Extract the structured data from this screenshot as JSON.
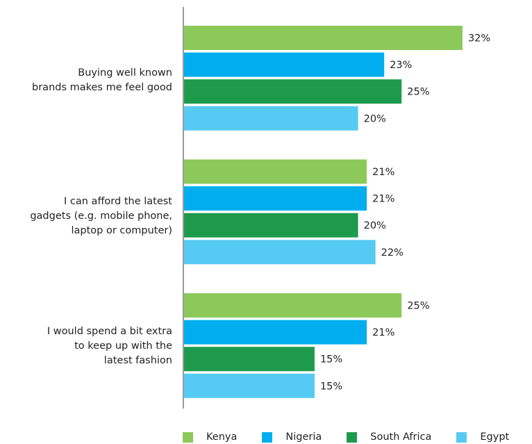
{
  "chart_data": {
    "type": "bar",
    "orientation": "horizontal",
    "categories": [
      "Buying well known\nbrands makes me feel good",
      "I can afford the latest \ngadgets (e.g. mobile phone,\nlaptop or computer)",
      "I would spend a bit extra\nto keep up with the\nlatest fashion"
    ],
    "series": [
      {
        "name": "Kenya",
        "color": "#8dc95a",
        "values": [
          32,
          21,
          25
        ],
        "labels": [
          "32%",
          "21%",
          "25%"
        ]
      },
      {
        "name": "Nigeria",
        "color": "#00aeef",
        "values": [
          23,
          21,
          21
        ],
        "labels": [
          "23%",
          "21%",
          "21%"
        ]
      },
      {
        "name": "South Africa",
        "color": "#1e9a4d",
        "values": [
          25,
          20,
          15
        ],
        "labels": [
          "25%",
          "20%",
          "15%"
        ]
      },
      {
        "name": "Egypt",
        "color": "#55cbf3",
        "values": [
          20,
          22,
          15
        ],
        "labels": [
          "20%",
          "22%",
          "15%"
        ]
      }
    ],
    "title": "",
    "xlabel": "",
    "ylabel": "",
    "value_suffix": "%",
    "grid": false,
    "legend_position": "bottom"
  }
}
